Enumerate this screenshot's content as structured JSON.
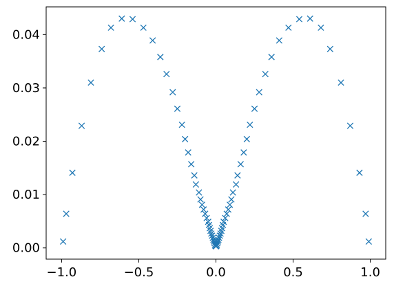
{
  "chart_data": {
    "type": "scatter",
    "marker": "x",
    "color": "#1f77b4",
    "title": "",
    "xlabel": "",
    "ylabel": "",
    "xlim": [
      -1.1,
      1.1
    ],
    "ylim": [
      -0.0021,
      0.0452
    ],
    "grid": false,
    "legend": "none",
    "xticks": [
      -1.0,
      -0.5,
      0.0,
      0.5,
      1.0
    ],
    "xtick_labels": [
      "−1.0",
      "−0.5",
      "0.0",
      "0.5",
      "1.0"
    ],
    "yticks": [
      0.0,
      0.01,
      0.02,
      0.03,
      0.04
    ],
    "ytick_labels": [
      "0.00",
      "0.01",
      "0.02",
      "0.03",
      "0.04"
    ],
    "series": [
      {
        "x": [
          -0.99,
          -0.97,
          -0.93,
          -0.87,
          -0.81,
          -0.74,
          -0.68,
          -0.61,
          -0.54,
          -0.47,
          -0.41,
          -0.36,
          -0.32,
          -0.28,
          -0.25,
          -0.22,
          -0.2,
          -0.18,
          -0.16,
          -0.14,
          -0.13,
          -0.11,
          -0.1,
          -0.09,
          -0.08,
          -0.07,
          -0.06,
          -0.05,
          -0.045,
          -0.04,
          -0.035,
          -0.03,
          -0.025,
          -0.02,
          -0.016,
          -0.012,
          -0.009,
          -0.006,
          -0.003,
          0.0,
          0.003,
          0.006,
          0.009,
          0.012,
          0.016,
          0.02,
          0.025,
          0.03,
          0.035,
          0.04,
          0.045,
          0.05,
          0.06,
          0.07,
          0.08,
          0.09,
          0.1,
          0.11,
          0.13,
          0.14,
          0.16,
          0.18,
          0.2,
          0.22,
          0.25,
          0.28,
          0.32,
          0.36,
          0.41,
          0.47,
          0.54,
          0.61,
          0.68,
          0.74,
          0.81,
          0.87,
          0.93,
          0.97,
          0.99
        ],
        "y": [
          0.0012,
          0.0064,
          0.0141,
          0.0229,
          0.031,
          0.0373,
          0.0413,
          0.043,
          0.0429,
          0.0413,
          0.0389,
          0.0358,
          0.0326,
          0.0292,
          0.0261,
          0.0231,
          0.0204,
          0.0179,
          0.0157,
          0.0136,
          0.0119,
          0.0104,
          0.0091,
          0.0081,
          0.0072,
          0.0064,
          0.0056,
          0.0049,
          0.0043,
          0.0037,
          0.0032,
          0.0027,
          0.0023,
          0.0019,
          0.0015,
          0.0012,
          0.0009,
          0.0006,
          0.0004,
          0.0003,
          0.0004,
          0.0006,
          0.0009,
          0.0012,
          0.0015,
          0.0019,
          0.0023,
          0.0027,
          0.0032,
          0.0037,
          0.0043,
          0.0049,
          0.0056,
          0.0064,
          0.0072,
          0.0081,
          0.0091,
          0.0104,
          0.0119,
          0.0136,
          0.0157,
          0.0179,
          0.0204,
          0.0231,
          0.0261,
          0.0292,
          0.0326,
          0.0358,
          0.0389,
          0.0413,
          0.0429,
          0.043,
          0.0413,
          0.0373,
          0.031,
          0.0229,
          0.0141,
          0.0064,
          0.0012
        ]
      }
    ]
  }
}
